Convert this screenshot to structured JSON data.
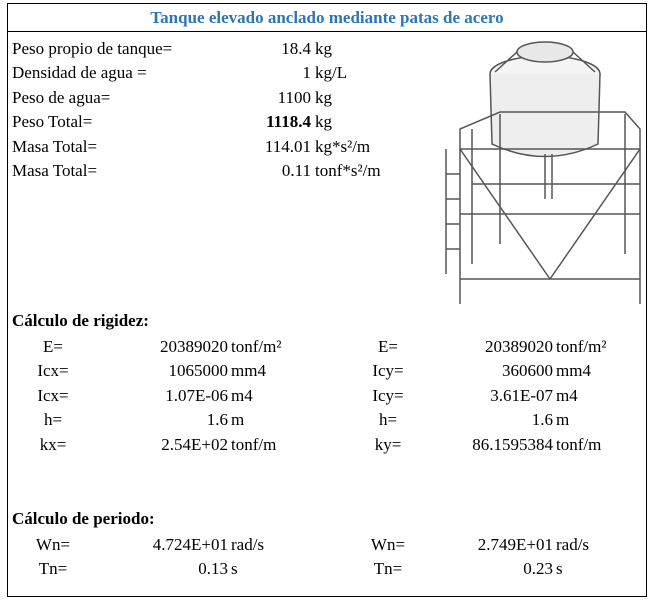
{
  "title": "Tanque elevado anclado mediante patas de acero",
  "general": [
    {
      "label": "Peso propio de tanque=",
      "value": "18.4",
      "unit": "kg"
    },
    {
      "label": "Densidad de agua =",
      "value": "1",
      "unit": "kg/L"
    },
    {
      "label": "Peso de agua=",
      "value": "1100",
      "unit": "kg"
    },
    {
      "label": "Peso Total=",
      "value": "1118.4",
      "unit": "kg"
    },
    {
      "label": "Masa Total=",
      "value": "114.01",
      "unit": "kg*s²/m"
    },
    {
      "label": "Masa Total=",
      "value": "0.11",
      "unit": "tonf*s²/m"
    }
  ],
  "rigidez": {
    "heading": "Cálculo de rigidez:",
    "rows": [
      {
        "left": {
          "label": "E=",
          "value": "20389020",
          "unit": "tonf/m²"
        },
        "right": {
          "label": "E=",
          "value": "20389020",
          "unit": "tonf/m²"
        }
      },
      {
        "left": {
          "label": "Icx=",
          "value": "1065000",
          "unit": "mm4"
        },
        "right": {
          "label": "Icy=",
          "value": "360600",
          "unit": "mm4"
        }
      },
      {
        "left": {
          "label": "Icx=",
          "value": "1.07E-06",
          "unit": "m4"
        },
        "right": {
          "label": "Icy=",
          "value": "3.61E-07",
          "unit": "m4"
        }
      },
      {
        "left": {
          "label": "h=",
          "value": "1.6",
          "unit": "m"
        },
        "right": {
          "label": "h=",
          "value": "1.6",
          "unit": "m"
        }
      },
      {
        "left": {
          "label": "kx=",
          "value": "2.54E+02",
          "unit": "tonf/m"
        },
        "right": {
          "label": "ky=",
          "value": "86.1595384",
          "unit": "tonf/m"
        }
      }
    ]
  },
  "periodo": {
    "heading": "Cálculo de periodo:",
    "rows": [
      {
        "left": {
          "label": "Wn=",
          "value": "4.724E+01",
          "unit": "rad/s"
        },
        "right": {
          "label": "Wn=",
          "value": "2.749E+01",
          "unit": "rad/s"
        }
      },
      {
        "left": {
          "label": "Tn=",
          "value": "0.13",
          "unit": "s"
        },
        "right": {
          "label": "Tn=",
          "value": "0.23",
          "unit": "s"
        }
      }
    ]
  }
}
